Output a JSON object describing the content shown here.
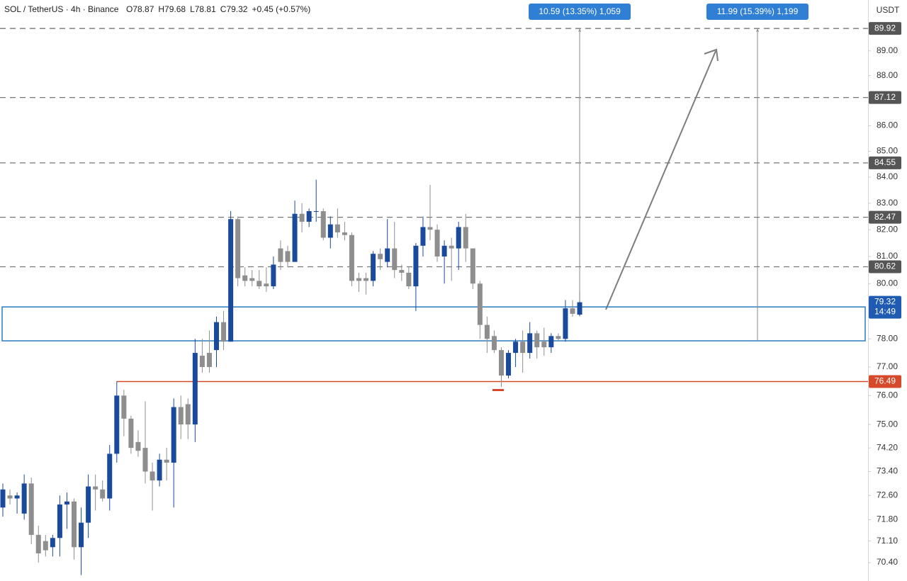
{
  "chart_data": {
    "type": "candlestick",
    "title": "SOL / TetherUS · 4h · Binance",
    "header_stats": [
      "O78.87",
      "H79.68",
      "L78.81",
      "C79.32",
      "+0.45 (+0.57%)"
    ],
    "axis_unit": "USDT",
    "log_scale": true,
    "grid": false,
    "ylim": [
      69.81,
      91.1
    ],
    "yticks": [
      {
        "value": 89,
        "label": "89.00"
      },
      {
        "value": 88,
        "label": "88.00"
      },
      {
        "value": 86,
        "label": "86.00"
      },
      {
        "value": 85,
        "label": "85.00"
      },
      {
        "value": 84,
        "label": "84.00"
      },
      {
        "value": 83,
        "label": "83.00"
      },
      {
        "value": 82,
        "label": "82.00"
      },
      {
        "value": 81,
        "label": "81.00"
      },
      {
        "value": 80,
        "label": "80.00"
      },
      {
        "value": 78,
        "label": "78.00"
      },
      {
        "value": 77,
        "label": "77.00"
      },
      {
        "value": 76,
        "label": "76.00"
      },
      {
        "value": 75,
        "label": "75.00"
      },
      {
        "value": 74.2,
        "label": "74.20"
      },
      {
        "value": 73.4,
        "label": "73.40"
      },
      {
        "value": 72.6,
        "label": "72.60"
      },
      {
        "value": 71.8,
        "label": "71.80"
      },
      {
        "value": 71.1,
        "label": "71.10"
      },
      {
        "value": 70.4,
        "label": "70.40"
      }
    ],
    "up_color": "#1a4a9c",
    "down_color": "#8e8e8e",
    "open": [
      72.2,
      72.6,
      72.5,
      72.0,
      73.0,
      71.3,
      71.1,
      70.9,
      71.2,
      72.3,
      72.4,
      70.9,
      71.7,
      72.9,
      72.8,
      72.5,
      74.0,
      76.0,
      75.2,
      74.4,
      74.2,
      73.4,
      73.1,
      73.8,
      73.7,
      75.6,
      75.7,
      75.0,
      77.4,
      77.5,
      77.6,
      78.6,
      77.9,
      82.4,
      80.3,
      80.2,
      80.1,
      80.0,
      79.9,
      81.3,
      81.2,
      80.8,
      82.6,
      82.3,
      82.7,
      82.7,
      81.7,
      82.2,
      81.9,
      81.8,
      80.2,
      80.2,
      80.1,
      81.1,
      80.8,
      81.3,
      80.5,
      80.4,
      79.9,
      81.4,
      82.1,
      82.0,
      81.0,
      81.4,
      81.3,
      82.1,
      81.3,
      80.0,
      78.5,
      78.1,
      77.6,
      76.7,
      77.5,
      77.9,
      77.5,
      78.2,
      77.9,
      77.7,
      78.1,
      78.0,
      79.1,
      78.87
    ],
    "high": [
      73.0,
      72.8,
      72.7,
      73.3,
      73.2,
      71.6,
      71.3,
      71.3,
      72.6,
      72.7,
      72.5,
      72.2,
      73.3,
      73.3,
      73.1,
      74.3,
      76.5,
      76.2,
      75.3,
      74.8,
      75.8,
      73.7,
      74.0,
      74.2,
      75.9,
      76.0,
      75.9,
      78.0,
      78.0,
      78.3,
      78.8,
      79.0,
      82.7,
      82.5,
      80.6,
      80.5,
      80.5,
      80.6,
      81.0,
      81.6,
      81.4,
      83.1,
      83.0,
      82.8,
      83.9,
      82.8,
      82.5,
      82.8,
      82.3,
      81.9,
      80.4,
      80.4,
      81.2,
      81.3,
      82.4,
      82.3,
      80.7,
      80.6,
      81.5,
      82.5,
      83.7,
      82.2,
      81.6,
      81.7,
      82.3,
      82.6,
      81.3,
      80.1,
      78.8,
      78.3,
      77.7,
      77.6,
      78.0,
      78.3,
      78.6,
      78.3,
      78.4,
      78.2,
      78.2,
      79.4,
      79.4,
      79.68
    ],
    "low": [
      71.9,
      72.3,
      72.0,
      71.8,
      71.0,
      70.4,
      70.6,
      70.6,
      70.6,
      71.5,
      70.5,
      70.0,
      71.2,
      72.1,
      72.4,
      72.1,
      73.7,
      74.6,
      74.0,
      73.9,
      73.0,
      72.1,
      72.9,
      73.1,
      72.2,
      74.5,
      74.5,
      74.4,
      76.8,
      76.8,
      77.0,
      77.6,
      77.9,
      79.9,
      79.9,
      79.9,
      79.8,
      79.7,
      79.8,
      80.5,
      80.6,
      80.8,
      81.9,
      82.1,
      82.3,
      81.6,
      81.3,
      81.7,
      81.6,
      79.9,
      79.7,
      79.6,
      79.9,
      80.5,
      80.6,
      80.2,
      80.1,
      79.8,
      79.0,
      81.0,
      81.6,
      80.8,
      80.0,
      80.1,
      80.5,
      80.8,
      79.8,
      78.0,
      77.5,
      77.5,
      76.3,
      76.6,
      77.0,
      76.8,
      77.3,
      77.3,
      77.4,
      77.5,
      77.9,
      77.9,
      78.8,
      78.81
    ],
    "close": [
      72.8,
      72.5,
      72.6,
      73.0,
      71.3,
      70.7,
      70.8,
      71.2,
      72.3,
      72.4,
      70.9,
      71.7,
      72.9,
      72.8,
      72.5,
      74.0,
      76.0,
      75.2,
      74.2,
      74.1,
      73.4,
      73.1,
      73.8,
      73.7,
      75.6,
      75.0,
      75.0,
      77.5,
      77.0,
      77.0,
      78.6,
      77.9,
      82.4,
      80.2,
      80.1,
      80.1,
      79.9,
      79.9,
      80.7,
      80.8,
      80.8,
      82.6,
      82.3,
      82.7,
      82.7,
      81.7,
      82.2,
      81.9,
      81.8,
      80.1,
      80.1,
      80.1,
      81.1,
      80.9,
      81.3,
      80.5,
      80.4,
      79.9,
      81.4,
      82.1,
      82.0,
      81.0,
      81.4,
      81.3,
      82.1,
      81.3,
      80.0,
      78.5,
      78.0,
      77.6,
      76.7,
      77.5,
      77.9,
      77.5,
      78.2,
      77.7,
      77.7,
      78.1,
      78.0,
      79.1,
      78.9,
      79.32
    ],
    "levels": [
      89.92,
      87.12,
      84.55,
      82.47,
      80.62
    ],
    "support": 76.49,
    "last_price": 79.32,
    "countdown": "14:49",
    "zone": [
      77.93,
      79.15
    ],
    "measurements": [
      {
        "label": "10.59 (13.35%) 1,059",
        "from": 79.33,
        "to": 89.92
      },
      {
        "label": "11.99 (15.39%) 1,199",
        "from": 77.93,
        "to": 89.92
      }
    ]
  }
}
